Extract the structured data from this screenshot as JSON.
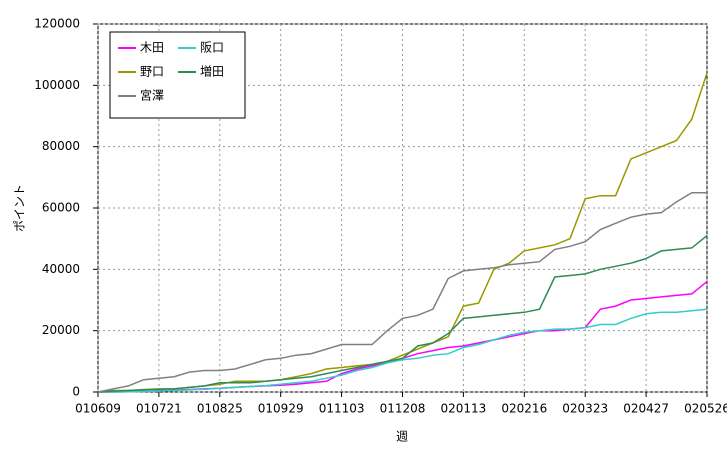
{
  "chart_data": {
    "type": "line",
    "x_label": "週",
    "y_label": "ポイント",
    "categories": [
      "010609",
      null,
      null,
      null,
      "010721",
      null,
      null,
      null,
      "010825",
      null,
      null,
      null,
      "010929",
      null,
      null,
      null,
      "011103",
      null,
      null,
      null,
      "011208",
      null,
      null,
      null,
      "020113",
      null,
      null,
      null,
      "020216",
      null,
      null,
      null,
      "020323",
      null,
      null,
      null,
      "020427",
      null,
      null,
      null,
      "020526"
    ],
    "ylim": [
      0,
      120000
    ],
    "yticks": [
      0,
      20000,
      40000,
      60000,
      80000,
      100000,
      120000
    ],
    "grid": true,
    "series": [
      {
        "name": "木田",
        "color": "#ff00ff",
        "values": [
          0,
          0,
          100,
          200,
          400,
          600,
          800,
          1000,
          1200,
          1500,
          1800,
          2000,
          2200,
          2500,
          3000,
          3500,
          6000,
          7500,
          8500,
          9500,
          11000,
          12500,
          13500,
          14500,
          15000,
          16000,
          17000,
          18000,
          19000,
          20000,
          20000,
          20500,
          21000,
          27000,
          28000,
          30000,
          30500,
          31000,
          31500,
          32000,
          36000
        ]
      },
      {
        "name": "阪口",
        "color": "#33cccc",
        "values": [
          0,
          0,
          100,
          200,
          300,
          500,
          700,
          900,
          1200,
          1500,
          1800,
          2100,
          2500,
          3000,
          3500,
          4500,
          5500,
          7000,
          8000,
          9500,
          10500,
          11000,
          12000,
          12500,
          14500,
          15500,
          17000,
          18500,
          19500,
          20000,
          20500,
          20500,
          21000,
          22000,
          22000,
          24000,
          25500,
          26000,
          26000,
          26500,
          27000
        ]
      },
      {
        "name": "野口",
        "color": "#999900",
        "values": [
          0,
          500,
          500,
          800,
          1000,
          1000,
          1500,
          2000,
          2500,
          3500,
          3500,
          3500,
          4000,
          5000,
          6000,
          7500,
          8000,
          8500,
          9000,
          10000,
          12000,
          14000,
          16000,
          18000,
          28000,
          29000,
          40000,
          42000,
          46000,
          47000,
          48000,
          50000,
          63000,
          64000,
          64000,
          76000,
          78000,
          80000,
          82000,
          89000,
          104000
        ]
      },
      {
        "name": "増田",
        "color": "#2e8b57",
        "values": [
          0,
          300,
          500,
          700,
          900,
          1000,
          1500,
          2000,
          3000,
          3000,
          3000,
          3500,
          4000,
          4500,
          5000,
          6000,
          7000,
          8000,
          9000,
          10000,
          11000,
          15000,
          16000,
          19000,
          24000,
          24500,
          25000,
          25500,
          26000,
          27000,
          37500,
          38000,
          38500,
          40000,
          41000,
          42000,
          43500,
          46000,
          46500,
          47000,
          51000
        ]
      },
      {
        "name": "宮澤",
        "color": "#808080",
        "values": [
          0,
          1000,
          2000,
          4000,
          4500,
          5000,
          6500,
          7000,
          7000,
          7500,
          9000,
          10500,
          11000,
          12000,
          12500,
          14000,
          15500,
          15500,
          15500,
          20000,
          24000,
          25000,
          27000,
          37000,
          39500,
          40000,
          40500,
          41500,
          42000,
          42500,
          46500,
          47500,
          49000,
          53000,
          55000,
          57000,
          58000,
          58500,
          62000,
          65000,
          65000
        ]
      }
    ]
  }
}
